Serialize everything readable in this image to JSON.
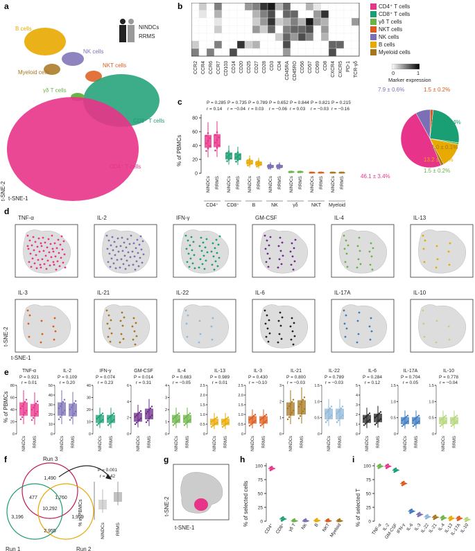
{
  "panels": {
    "a": {
      "letter": "a",
      "clusters": [
        "B cells",
        "NK cells",
        "NKT cells",
        "Myeloid cells",
        "γδ T cells",
        "CD8⁺ T cells",
        "CD4⁺ T cells"
      ],
      "legend": [
        "NINDCs",
        "RRMS"
      ],
      "axis_y": "t-SNE-2",
      "axis_x": "t-SNE-1"
    },
    "b": {
      "letter": "b",
      "markers": [
        "CCR2",
        "CCR4",
        "CCR6",
        "CCR7",
        "CD103",
        "CD14",
        "CD20",
        "CD25",
        "CD27",
        "CD28",
        "CD3",
        "CD4",
        "CD45RA",
        "CD45RO",
        "CD56",
        "CD57",
        "CD69",
        "CD8",
        "CXCR4",
        "CXCR5",
        "PD-1",
        "TCR-γδ"
      ],
      "legend": [
        {
          "label": "CD4⁺ T cells",
          "color": "#e8338a"
        },
        {
          "label": "CD8⁺ T cells",
          "color": "#1a9e74"
        },
        {
          "label": "γδ T cells",
          "color": "#6ab345"
        },
        {
          "label": "NKT cells",
          "color": "#dd5a1a"
        },
        {
          "label": "NK cells",
          "color": "#7b6fb5"
        },
        {
          "label": "B cells",
          "color": "#e8a900"
        },
        {
          "label": "Myeloid cells",
          "color": "#a6761d"
        }
      ],
      "scale_min": "0",
      "scale_max": "1",
      "scale_label": "Marker expression"
    },
    "c": {
      "letter": "c",
      "ylabel": "% of PBMCs",
      "stats": [
        {
          "p": "P = 0.285",
          "r": "r = 0.14"
        },
        {
          "p": "P = 0.735",
          "r": "r = −0.04"
        },
        {
          "p": "P = 0.789",
          "r": "r = 0.03"
        },
        {
          "p": "P = 0.652",
          "r": "r = −0.06"
        },
        {
          "p": "P = 0.844",
          "r": "r = 0.03"
        },
        {
          "p": "P = 0.821",
          "r": "r = −0.03"
        },
        {
          "p": "P = 0.215",
          "r": "r = −0.16"
        }
      ],
      "groups": [
        "CD4⁺",
        "CD8⁺",
        "B",
        "NK",
        "γδ",
        "NKT",
        "Myeloid"
      ],
      "conditions": [
        "NINDCs",
        "RRMS"
      ],
      "pie_labels": [
        "46.1 ± 3.4%",
        "24.2 ± 1.4%",
        "13.2 ± 1.1%",
        "1.5 ± 0.2%",
        "1.0 ± 0.1%",
        "1.5 ± 0.2%",
        "7.9 ± 0.6%"
      ]
    },
    "d": {
      "letter": "d",
      "cytokines_row1": [
        "TNF-α",
        "IL-2",
        "IFN-γ",
        "GM-CSF",
        "IL-4",
        "IL-13"
      ],
      "cytokines_row2": [
        "IL-3",
        "IL-21",
        "IL-22",
        "IL-6",
        "IL-17A",
        "IL-10"
      ],
      "axis_y": "t-SNE-2",
      "axis_x": "t-SNE-1"
    },
    "e": {
      "letter": "e",
      "ylabel": "% of PBMCs",
      "conditions": [
        "NINDCs",
        "RRMS"
      ]
    },
    "f": {
      "letter": "f",
      "runs": [
        "Run 3",
        "Run 1",
        "Run 2"
      ],
      "numbers": [
        "1,490",
        "477",
        "1,760",
        "10,292",
        "3,196",
        "2,955",
        "1,959"
      ],
      "p": "P = 0.001",
      "r": "r = 0.42",
      "ylabel": "% in PBMCs",
      "conditions": [
        "NINDCs",
        "RRMS"
      ]
    },
    "g": {
      "letter": "g",
      "axis_y": "t-SNE-2",
      "axis_x": "t-SNE-1"
    },
    "h": {
      "letter": "h",
      "ylabel": "% of selected cells",
      "categories": [
        "CD4⁺",
        "CD8⁺",
        "γδ T",
        "NK",
        "B",
        "NKT",
        "Myeloid"
      ]
    },
    "i": {
      "letter": "i",
      "ylabel": "% of selected T",
      "categories": [
        "TNF-α",
        "IL-2",
        "GM-CSF",
        "IFN-γ",
        "IL-6",
        "IL-3",
        "IL-22",
        "IL-21",
        "IL-4",
        "IL-13",
        "IL-17A",
        "IL-10"
      ]
    }
  },
  "chart_data": [
    {
      "type": "box",
      "panel": "c",
      "categories": [
        "CD4⁺",
        "CD8⁺",
        "B",
        "NK",
        "γδ",
        "NKT",
        "Myeloid"
      ],
      "series": [
        {
          "name": "NINDCs",
          "values": [
            46,
            25,
            16,
            10,
            2,
            1,
            1
          ]
        },
        {
          "name": "RRMS",
          "values": [
            47,
            24,
            14,
            10,
            2,
            1,
            1
          ]
        }
      ],
      "ylim": [
        0,
        80
      ]
    },
    {
      "type": "pie",
      "panel": "c",
      "labels": [
        "CD4⁺ T cells",
        "CD8⁺ T cells",
        "Myeloid cells",
        "NKT cells",
        "γδ T cells",
        "B cells",
        "NK cells"
      ],
      "values": [
        46.1,
        24.2,
        13.2,
        1.5,
        1.0,
        1.5,
        7.9
      ]
    },
    {
      "type": "box",
      "panel": "e",
      "categories": [
        "TNF-α",
        "IL-2",
        "IFN-γ",
        "GM-CSF",
        "IL-4",
        "IL-13",
        "IL-3",
        "IL-21",
        "IL-22",
        "IL-6",
        "IL-17A",
        "IL-10"
      ],
      "stats": [
        {
          "p": "P = 0.921",
          "r": "r = 0.01"
        },
        {
          "p": "P = 0.109",
          "r": "r = 0.20"
        },
        {
          "p": "P = 0.074",
          "r": "r = 0.23"
        },
        {
          "p": "P = 0.014",
          "r": "r = 0.31"
        },
        {
          "p": "P = 0.683",
          "r": "r = −0.05"
        },
        {
          "p": "P = 0.989",
          "r": "r = 0.01"
        },
        {
          "p": "P = 0.430",
          "r": "r = −0.10"
        },
        {
          "p": "P = 0.800",
          "r": "r = −0.03"
        },
        {
          "p": "P = 0.789",
          "r": "r = −0.03"
        },
        {
          "p": "P = 0.284",
          "r": "r = 0.12"
        },
        {
          "p": "P = 0.704",
          "r": "r = 0.05"
        },
        {
          "p": "P = 0.778",
          "r": "r = −0.04"
        }
      ],
      "ylims": [
        [
          0,
          80
        ],
        [
          0,
          50
        ],
        [
          0,
          40
        ],
        [
          0,
          6
        ],
        [
          0,
          4
        ],
        [
          0,
          2.5
        ],
        [
          0,
          2.5
        ],
        [
          0,
          3
        ],
        [
          0,
          1.5
        ],
        [
          0,
          5
        ],
        [
          0,
          1.5
        ],
        [
          0,
          1.5
        ]
      ],
      "ticks": [
        [
          "0",
          "20",
          "40",
          "60",
          "80"
        ],
        [
          "0",
          "10",
          "20",
          "30",
          "40",
          "50"
        ],
        [
          "0",
          "10",
          "20",
          "30",
          "40"
        ],
        [
          "0",
          "2",
          "4",
          "6"
        ],
        [
          "0",
          "1",
          "2",
          "3",
          "4"
        ],
        [
          "0",
          "0.5",
          "1.0",
          "1.5",
          "2.0",
          "2.5"
        ],
        [
          "0",
          "0.5",
          "1.0",
          "1.5",
          "2.0",
          "2.5"
        ],
        [
          "0",
          "1",
          "2",
          "3"
        ],
        [
          "0",
          "0.5",
          "1.0",
          "1.5"
        ],
        [
          "0",
          "1",
          "2",
          "3",
          "4",
          "5"
        ],
        [
          "0",
          "0.5",
          "1.0",
          "1.5"
        ],
        [
          "0",
          "0.5",
          "1.0",
          "1.5"
        ]
      ],
      "medians_nindc": [
        40,
        25,
        12,
        2,
        1.2,
        0.6,
        0.7,
        1.5,
        0.6,
        1.5,
        0.4,
        0.4
      ],
      "medians_rrms": [
        38,
        24,
        12,
        2.4,
        1.2,
        0.6,
        0.7,
        1.6,
        0.6,
        1.6,
        0.4,
        0.4
      ]
    },
    {
      "type": "scatter",
      "panel": "h",
      "categories": [
        "CD4⁺",
        "CD8⁺",
        "γδ T",
        "NK",
        "B",
        "NKT",
        "Myeloid"
      ],
      "values": [
        95,
        4,
        0.5,
        0.5,
        1,
        0.5,
        0.5
      ],
      "ylim": [
        0,
        100
      ],
      "ticks": [
        "0",
        "25",
        "50",
        "75",
        "100"
      ]
    },
    {
      "type": "scatter",
      "panel": "i",
      "categories": [
        "TNF-α",
        "IL-2",
        "GM-CSF",
        "IFN-γ",
        "IL-6",
        "IL-3",
        "IL-22",
        "IL-21",
        "IL-4",
        "IL-13",
        "IL-17A",
        "IL-10"
      ],
      "values": [
        99,
        99,
        92,
        68,
        18,
        12,
        8,
        7,
        6,
        5,
        5,
        3
      ],
      "ylim": [
        0,
        100
      ],
      "ticks": [
        "0",
        "25",
        "50",
        "75",
        "100"
      ]
    }
  ]
}
